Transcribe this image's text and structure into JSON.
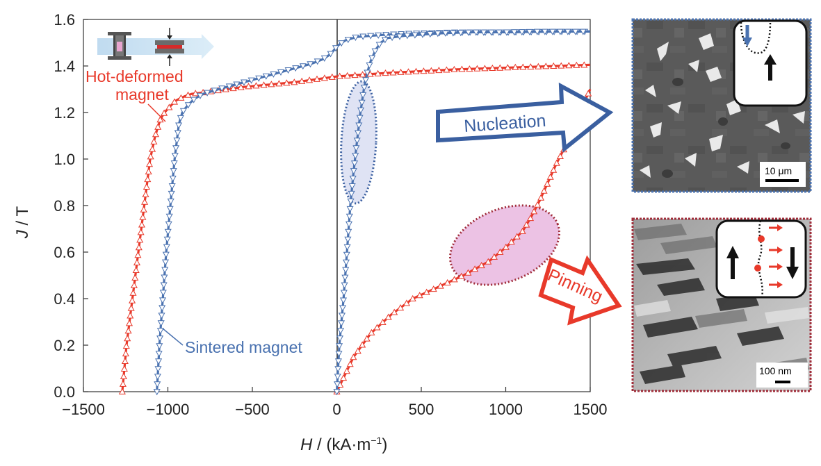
{
  "chart_data": {
    "type": "line",
    "xlabel_italic": "H",
    "xlabel_rest": " / (kA·m",
    "xlabel_sup": "−1",
    "xlabel_close": ")",
    "ylabel_italic": "J",
    "ylabel_rest": " / T",
    "xlim": [
      -1500,
      1500
    ],
    "ylim": [
      0,
      1.6
    ],
    "x_ticks": [
      -1500,
      -1000,
      -500,
      0,
      500,
      1000,
      1500
    ],
    "x_tick_labels": [
      "−1500",
      "−1000",
      "−500",
      "0",
      "500",
      "1000",
      "1500"
    ],
    "y_ticks": [
      0,
      0.2,
      0.4,
      0.6,
      0.8,
      1.0,
      1.2,
      1.4,
      1.6
    ],
    "y_tick_labels": [
      "0.0",
      "0.2",
      "0.4",
      "0.6",
      "0.8",
      "1.0",
      "1.2",
      "1.4",
      "1.6"
    ],
    "grid": false,
    "series": [
      {
        "name": "Hot-deformed magnet",
        "color": "#e8392a",
        "marker": "triangle-up",
        "segments": [
          {
            "part": "demagnetization",
            "x": [
              -1270,
              -1245,
              -1210,
              -1175,
              -1140,
              -1105,
              -1075,
              -1045,
              -1020,
              -995,
              -975,
              -955,
              -930,
              -900,
              -860,
              -800,
              -700,
              -550,
              -400,
              -250,
              -100,
              0,
              300,
              700,
              1100,
              1500
            ],
            "y": [
              0.0,
              0.2,
              0.4,
              0.6,
              0.8,
              1.0,
              1.1,
              1.17,
              1.2,
              1.22,
              1.235,
              1.25,
              1.26,
              1.27,
              1.28,
              1.285,
              1.295,
              1.31,
              1.32,
              1.33,
              1.345,
              1.355,
              1.37,
              1.385,
              1.395,
              1.405
            ]
          },
          {
            "part": "initial magnetization",
            "x": [
              0,
              40,
              100,
              200,
              320,
              450,
              600,
              750,
              900,
              1000,
              1100,
              1150,
              1200,
              1250,
              1300,
              1350,
              1400,
              1450,
              1500
            ],
            "y": [
              0.0,
              0.06,
              0.15,
              0.25,
              0.33,
              0.4,
              0.45,
              0.5,
              0.56,
              0.62,
              0.69,
              0.75,
              0.82,
              0.9,
              0.98,
              1.05,
              1.13,
              1.22,
              1.3
            ]
          }
        ]
      },
      {
        "name": "Sintered magnet",
        "color": "#4a72b0",
        "marker": "triangle-down",
        "segments": [
          {
            "part": "demagnetization",
            "x": [
              -1065,
              -1050,
              -1030,
              -1010,
              -985,
              -960,
              -935,
              -915,
              -895,
              -870,
              -840,
              -790,
              -700,
              -550,
              -400,
              -250,
              -150,
              -80,
              -40,
              -15,
              10,
              50,
              120,
              200,
              300,
              450,
              700,
              1000,
              1300,
              1500
            ],
            "y": [
              0.0,
              0.2,
              0.4,
              0.6,
              0.8,
              1.0,
              1.15,
              1.2,
              1.22,
              1.24,
              1.26,
              1.28,
              1.3,
              1.33,
              1.36,
              1.39,
              1.41,
              1.43,
              1.45,
              1.47,
              1.49,
              1.51,
              1.525,
              1.53,
              1.535,
              1.54,
              1.545,
              1.545,
              1.548,
              1.548
            ]
          },
          {
            "part": "initial magnetization",
            "x": [
              0,
              15,
              40,
              60,
              80,
              100,
              120,
              140,
              160,
              180,
              200,
              230,
              260,
              300,
              400,
              600,
              800,
              1000,
              1200,
              1500
            ],
            "y": [
              0.0,
              0.2,
              0.4,
              0.6,
              0.8,
              0.95,
              1.08,
              1.2,
              1.3,
              1.37,
              1.42,
              1.47,
              1.5,
              1.52,
              1.53,
              1.54,
              1.545,
              1.545,
              1.548,
              1.548
            ]
          }
        ]
      }
    ],
    "annotations": {
      "hot_deformed_label_line1": "Hot-deformed",
      "hot_deformed_label_line2": "magnet",
      "sintered_label": "Sintered magnet",
      "nucleation_label": "Nucleation",
      "pinning_label": "Pinning",
      "scale_top": "10 μm",
      "scale_bottom": "100 nm"
    },
    "colors": {
      "red": "#e8392a",
      "blue": "#4a72b0",
      "nucleation_ellipse_fill": "#dfe3f4",
      "pinning_ellipse_fill": "#ecc2e4",
      "nucleation_ellipse_stroke": "#3a5fa0",
      "pinning_ellipse_stroke": "#a02d3a"
    }
  }
}
